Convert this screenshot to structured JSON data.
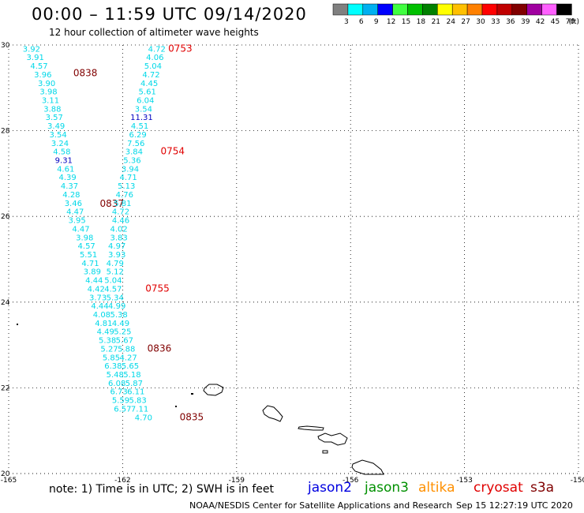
{
  "header": {
    "title": "00:00 – 11:59 UTC 09/14/2020",
    "subtitle": "12 hour collection of altimeter wave heights"
  },
  "legend": {
    "unit": "(ft)",
    "bins": [
      {
        "label": "3",
        "color": "#808080"
      },
      {
        "label": "6",
        "color": "#00ffff"
      },
      {
        "label": "9",
        "color": "#00b0f0"
      },
      {
        "label": "12",
        "color": "#0000ff"
      },
      {
        "label": "15",
        "color": "#40ff40"
      },
      {
        "label": "18",
        "color": "#00c000"
      },
      {
        "label": "21",
        "color": "#008000"
      },
      {
        "label": "24",
        "color": "#ffff00"
      },
      {
        "label": "27",
        "color": "#ffc000"
      },
      {
        "label": "30",
        "color": "#ff8000"
      },
      {
        "label": "33",
        "color": "#ff0000"
      },
      {
        "label": "36",
        "color": "#c00000"
      },
      {
        "label": "39",
        "color": "#800000"
      },
      {
        "label": "42",
        "color": "#a000a0"
      },
      {
        "label": "45",
        "color": "#ff60ff"
      },
      {
        "label": "70",
        "color": "#000000"
      }
    ]
  },
  "axes": {
    "lon_ticks": [
      -165,
      -162,
      -159,
      -156,
      -153,
      -150
    ],
    "lon_labels": [
      "-165",
      "-162",
      "-159",
      "-156",
      "-153",
      "-150"
    ],
    "lat_ticks": [
      30,
      28,
      26,
      24,
      22,
      20
    ],
    "lat_labels": [
      "30",
      "28",
      "26",
      "24",
      "22",
      "20"
    ],
    "lon_range": [
      -165,
      -150
    ],
    "lat_range": [
      20,
      30
    ],
    "grid": "dotted"
  },
  "tracks": [
    {
      "id": "track-west",
      "color": "#00d8e8",
      "points": [
        {
          "lon": -164.4,
          "lat": 29.92,
          "v": "3.92"
        },
        {
          "lon": -164.3,
          "lat": 29.72,
          "v": "3.91"
        },
        {
          "lon": -164.2,
          "lat": 29.52,
          "v": "4.57"
        },
        {
          "lon": -164.1,
          "lat": 29.32,
          "v": "3.96"
        },
        {
          "lon": -164.0,
          "lat": 29.12,
          "v": "3.90"
        },
        {
          "lon": -163.95,
          "lat": 28.92,
          "v": "3.98"
        },
        {
          "lon": -163.9,
          "lat": 28.72,
          "v": "3.11"
        },
        {
          "lon": -163.85,
          "lat": 28.52,
          "v": "3.88"
        },
        {
          "lon": -163.8,
          "lat": 28.32,
          "v": "3.57"
        },
        {
          "lon": -163.75,
          "lat": 28.12,
          "v": "3.49"
        },
        {
          "lon": -163.7,
          "lat": 27.92,
          "v": "3.54"
        },
        {
          "lon": -163.65,
          "lat": 27.72,
          "v": "3.24"
        },
        {
          "lon": -163.6,
          "lat": 27.52,
          "v": "4.58"
        },
        {
          "lon": -163.55,
          "lat": 27.32,
          "v": "9.31",
          "color": "#0000c0"
        },
        {
          "lon": -163.5,
          "lat": 27.12,
          "v": "4.61"
        },
        {
          "lon": -163.45,
          "lat": 26.92,
          "v": "4.39"
        },
        {
          "lon": -163.4,
          "lat": 26.72,
          "v": "4.37"
        },
        {
          "lon": -163.35,
          "lat": 26.52,
          "v": "4.28"
        },
        {
          "lon": -163.3,
          "lat": 26.32,
          "v": "3.46"
        },
        {
          "lon": -163.25,
          "lat": 26.12,
          "v": "4.47"
        },
        {
          "lon": -163.2,
          "lat": 25.92,
          "v": "3.95"
        },
        {
          "lon": -163.1,
          "lat": 25.72,
          "v": "4.47"
        },
        {
          "lon": -163.0,
          "lat": 25.52,
          "v": "3.98"
        },
        {
          "lon": -162.95,
          "lat": 25.32,
          "v": "4.57"
        },
        {
          "lon": -162.9,
          "lat": 25.12,
          "v": "5.51"
        },
        {
          "lon": -162.85,
          "lat": 24.92,
          "v": "4.71"
        },
        {
          "lon": -162.8,
          "lat": 24.72,
          "v": "3.89"
        },
        {
          "lon": -162.75,
          "lat": 24.52,
          "v": "4.44"
        },
        {
          "lon": -162.7,
          "lat": 24.32,
          "v": "4.42"
        },
        {
          "lon": -162.65,
          "lat": 24.12,
          "v": "3.73"
        },
        {
          "lon": -162.6,
          "lat": 23.92,
          "v": "4.44"
        },
        {
          "lon": -162.55,
          "lat": 23.72,
          "v": "4.08"
        },
        {
          "lon": -162.5,
          "lat": 23.52,
          "v": "4.81"
        },
        {
          "lon": -162.45,
          "lat": 23.32,
          "v": "4.49"
        },
        {
          "lon": -162.4,
          "lat": 23.12,
          "v": "5.38"
        },
        {
          "lon": -162.35,
          "lat": 22.92,
          "v": "5.27"
        },
        {
          "lon": -162.3,
          "lat": 22.72,
          "v": "5.85"
        },
        {
          "lon": -162.25,
          "lat": 22.52,
          "v": "6.38"
        },
        {
          "lon": -162.2,
          "lat": 22.32,
          "v": "5.48"
        },
        {
          "lon": -162.15,
          "lat": 22.12,
          "v": "6.08"
        },
        {
          "lon": -162.1,
          "lat": 21.92,
          "v": "6.73"
        },
        {
          "lon": -162.05,
          "lat": 21.72,
          "v": "5.59"
        },
        {
          "lon": -162.0,
          "lat": 21.52,
          "v": "6.57"
        }
      ],
      "time_labels": [
        {
          "lon": -163.3,
          "lat": 29.35,
          "v": "0838",
          "color": "#800000"
        },
        {
          "lon": -162.6,
          "lat": 26.3,
          "v": "0837",
          "color": "#800000"
        }
      ]
    },
    {
      "id": "track-east",
      "color": "#00d8e8",
      "points": [
        {
          "lon": -161.1,
          "lat": 29.92,
          "v": "4.72"
        },
        {
          "lon": -161.15,
          "lat": 29.72,
          "v": "4.06"
        },
        {
          "lon": -161.2,
          "lat": 29.52,
          "v": "5.04"
        },
        {
          "lon": -161.25,
          "lat": 29.32,
          "v": "4.72"
        },
        {
          "lon": -161.3,
          "lat": 29.12,
          "v": "4.45"
        },
        {
          "lon": -161.35,
          "lat": 28.92,
          "v": "5.61"
        },
        {
          "lon": -161.4,
          "lat": 28.72,
          "v": "6.04"
        },
        {
          "lon": -161.45,
          "lat": 28.52,
          "v": "3.54"
        },
        {
          "lon": -161.5,
          "lat": 28.32,
          "v": "11.31",
          "color": "#0000c0"
        },
        {
          "lon": -161.55,
          "lat": 28.12,
          "v": "4.51"
        },
        {
          "lon": -161.6,
          "lat": 27.92,
          "v": "6.29"
        },
        {
          "lon": -161.65,
          "lat": 27.72,
          "v": "7.56"
        },
        {
          "lon": -161.7,
          "lat": 27.52,
          "v": "3.84"
        },
        {
          "lon": -161.75,
          "lat": 27.32,
          "v": "5.36"
        },
        {
          "lon": -161.8,
          "lat": 27.12,
          "v": "3.94"
        },
        {
          "lon": -161.85,
          "lat": 26.92,
          "v": "4.71"
        },
        {
          "lon": -161.9,
          "lat": 26.72,
          "v": "5.13"
        },
        {
          "lon": -161.95,
          "lat": 26.52,
          "v": "4.76"
        },
        {
          "lon": -162.0,
          "lat": 26.32,
          "v": "5.81"
        },
        {
          "lon": -162.05,
          "lat": 26.12,
          "v": "4.72"
        },
        {
          "lon": -162.05,
          "lat": 25.92,
          "v": "4.46"
        },
        {
          "lon": -162.1,
          "lat": 25.72,
          "v": "4.02"
        },
        {
          "lon": -162.1,
          "lat": 25.52,
          "v": "3.83"
        },
        {
          "lon": -162.15,
          "lat": 25.32,
          "v": "4.97"
        },
        {
          "lon": -162.15,
          "lat": 25.12,
          "v": "3.93"
        },
        {
          "lon": -162.2,
          "lat": 24.92,
          "v": "4.79"
        },
        {
          "lon": -162.2,
          "lat": 24.72,
          "v": "5.12"
        },
        {
          "lon": -162.25,
          "lat": 24.52,
          "v": "5.04"
        },
        {
          "lon": -162.25,
          "lat": 24.32,
          "v": "4.57"
        },
        {
          "lon": -162.2,
          "lat": 24.12,
          "v": "5.34"
        },
        {
          "lon": -162.15,
          "lat": 23.92,
          "v": "4.99"
        },
        {
          "lon": -162.1,
          "lat": 23.72,
          "v": "5.38"
        },
        {
          "lon": -162.05,
          "lat": 23.52,
          "v": "4.49"
        },
        {
          "lon": -162.0,
          "lat": 23.32,
          "v": "5.25"
        },
        {
          "lon": -161.95,
          "lat": 23.12,
          "v": "5.67"
        },
        {
          "lon": -161.9,
          "lat": 22.92,
          "v": "5.88"
        },
        {
          "lon": -161.85,
          "lat": 22.72,
          "v": "4.27"
        },
        {
          "lon": -161.8,
          "lat": 22.52,
          "v": "5.65"
        },
        {
          "lon": -161.75,
          "lat": 22.32,
          "v": "5.18"
        },
        {
          "lon": -161.7,
          "lat": 22.12,
          "v": "5.87"
        },
        {
          "lon": -161.65,
          "lat": 21.92,
          "v": "6.11"
        },
        {
          "lon": -161.6,
          "lat": 21.72,
          "v": "5.83"
        },
        {
          "lon": -161.55,
          "lat": 21.52,
          "v": "7.11"
        },
        {
          "lon": -161.45,
          "lat": 21.32,
          "v": "4.70"
        }
      ],
      "time_labels": [
        {
          "lon": -160.8,
          "lat": 29.92,
          "v": "0753",
          "color": "#e00000"
        },
        {
          "lon": -161.0,
          "lat": 27.52,
          "v": "0754",
          "color": "#e00000"
        },
        {
          "lon": -161.4,
          "lat": 24.32,
          "v": "0755",
          "color": "#e00000"
        },
        {
          "lon": -161.35,
          "lat": 22.92,
          "v": "0836",
          "color": "#800000"
        },
        {
          "lon": -160.5,
          "lat": 21.32,
          "v": "0835",
          "color": "#800000"
        }
      ]
    }
  ],
  "islands": [
    {
      "name": "Kauai"
    },
    {
      "name": "Oahu"
    },
    {
      "name": "Molokai"
    },
    {
      "name": "Maui"
    },
    {
      "name": "Hawaii"
    }
  ],
  "footer": {
    "note": "note: 1) Time is in UTC; 2) SWH is in feet",
    "satellites": [
      {
        "label": "jason2",
        "color": "#0000e0"
      },
      {
        "label": "jason3",
        "color": "#009000"
      },
      {
        "label": "altika",
        "color": "#ff9000"
      },
      {
        "label": "cryosat",
        "color": "#e00000"
      },
      {
        "label": "s3a",
        "color": "#800000"
      }
    ],
    "credit": "NOAA/NESDIS Center for Satellite Applications and Research",
    "timestamp": "Sep 15 12:27:19 UTC 2020"
  }
}
